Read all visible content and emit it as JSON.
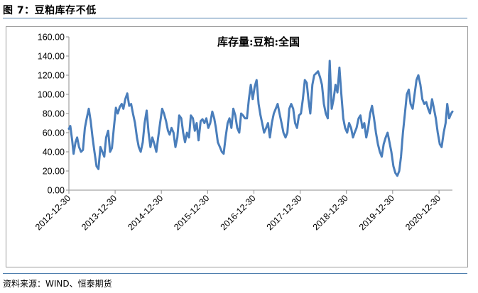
{
  "figure": {
    "title": "图 7：豆粕库存不低",
    "source": "资料来源：WIND、恒泰期货"
  },
  "chart_data": {
    "type": "line",
    "title": "库存量:豆粕:全国",
    "xlabel": "",
    "ylabel": "",
    "ylim": [
      0,
      160
    ],
    "y_ticks": [
      "0.00",
      "20.00",
      "40.00",
      "60.00",
      "80.00",
      "100.00",
      "120.00",
      "140.00",
      "160.00"
    ],
    "x_ticks": [
      "2012-12-30",
      "2013-12-30",
      "2014-12-30",
      "2015-12-30",
      "2016-12-30",
      "2017-12-30",
      "2018-12-30",
      "2019-12-30",
      "2020-12-30"
    ],
    "x_range": [
      "2012-12-30",
      "2021-04-15"
    ],
    "grid": false,
    "legend": "none",
    "line_color": "#4a7ebb",
    "series": [
      {
        "x": [
          "2012-12-30",
          "2013-01-10",
          "2013-01-25",
          "2013-02-05",
          "2013-02-20",
          "2013-03-05",
          "2013-03-20",
          "2013-04-05",
          "2013-04-20",
          "2013-05-05",
          "2013-05-20",
          "2013-06-05",
          "2013-06-20",
          "2013-07-05",
          "2013-07-20",
          "2013-08-05",
          "2013-08-20",
          "2013-09-05",
          "2013-09-20",
          "2013-10-05",
          "2013-10-20",
          "2013-11-05",
          "2013-11-20",
          "2013-12-05",
          "2013-12-20",
          "2014-01-05",
          "2014-01-20",
          "2014-02-05",
          "2014-02-20",
          "2014-03-05",
          "2014-03-20",
          "2014-04-05",
          "2014-04-20",
          "2014-05-05",
          "2014-05-20",
          "2014-06-05",
          "2014-06-20",
          "2014-07-05",
          "2014-07-20",
          "2014-08-05",
          "2014-08-20",
          "2014-09-05",
          "2014-09-20",
          "2014-10-05",
          "2014-10-20",
          "2014-11-05",
          "2014-11-20",
          "2014-12-05",
          "2014-12-20",
          "2015-01-05",
          "2015-01-20",
          "2015-02-05",
          "2015-02-20",
          "2015-03-05",
          "2015-03-20",
          "2015-04-05",
          "2015-04-20",
          "2015-05-05",
          "2015-05-20",
          "2015-06-05",
          "2015-06-20",
          "2015-07-05",
          "2015-07-20",
          "2015-08-05",
          "2015-08-20",
          "2015-09-05",
          "2015-09-20",
          "2015-10-05",
          "2015-10-20",
          "2015-11-05",
          "2015-11-20",
          "2015-12-05",
          "2015-12-20",
          "2016-01-05",
          "2016-01-20",
          "2016-02-05",
          "2016-02-20",
          "2016-03-05",
          "2016-03-20",
          "2016-04-05",
          "2016-04-20",
          "2016-05-05",
          "2016-05-20",
          "2016-06-05",
          "2016-06-20",
          "2016-07-05",
          "2016-07-20",
          "2016-08-05",
          "2016-08-20",
          "2016-09-05",
          "2016-09-20",
          "2016-10-05",
          "2016-10-20",
          "2016-11-05",
          "2016-11-20",
          "2016-12-05",
          "2016-12-20",
          "2017-01-05",
          "2017-01-20",
          "2017-02-05",
          "2017-02-20",
          "2017-03-05",
          "2017-03-20",
          "2017-04-05",
          "2017-04-20",
          "2017-05-05",
          "2017-05-20",
          "2017-06-05",
          "2017-06-20",
          "2017-07-05",
          "2017-07-20",
          "2017-08-05",
          "2017-08-20",
          "2017-09-05",
          "2017-09-20",
          "2017-10-05",
          "2017-10-20",
          "2017-11-05",
          "2017-11-20",
          "2017-12-05",
          "2017-12-20",
          "2018-01-05",
          "2018-01-20",
          "2018-02-05",
          "2018-02-20",
          "2018-03-05",
          "2018-03-20",
          "2018-04-05",
          "2018-04-20",
          "2018-05-05",
          "2018-05-20",
          "2018-06-05",
          "2018-06-20",
          "2018-07-05",
          "2018-07-20",
          "2018-08-05",
          "2018-08-20",
          "2018-09-05",
          "2018-09-20",
          "2018-10-05",
          "2018-10-20",
          "2018-11-05",
          "2018-11-20",
          "2018-12-05",
          "2018-12-20",
          "2019-01-05",
          "2019-01-20",
          "2019-02-05",
          "2019-02-20",
          "2019-03-05",
          "2019-03-20",
          "2019-04-05",
          "2019-04-20",
          "2019-05-05",
          "2019-05-20",
          "2019-06-05",
          "2019-06-20",
          "2019-07-05",
          "2019-07-20",
          "2019-08-05",
          "2019-08-20",
          "2019-09-05",
          "2019-09-20",
          "2019-10-05",
          "2019-10-20",
          "2019-11-05",
          "2019-11-20",
          "2019-12-05",
          "2019-12-20",
          "2020-01-05",
          "2020-01-20",
          "2020-02-05",
          "2020-02-20",
          "2020-03-05",
          "2020-03-20",
          "2020-04-05",
          "2020-04-20",
          "2020-05-05",
          "2020-05-20",
          "2020-06-05",
          "2020-06-20",
          "2020-07-05",
          "2020-07-20",
          "2020-08-05",
          "2020-08-20",
          "2020-09-05",
          "2020-09-20",
          "2020-10-05",
          "2020-10-20",
          "2020-11-05",
          "2020-11-20",
          "2020-12-05",
          "2020-12-20",
          "2021-01-05",
          "2021-01-20",
          "2021-02-05",
          "2021-02-20",
          "2021-03-05",
          "2021-03-20",
          "2021-04-05",
          "2021-04-15"
        ],
        "values": [
          64,
          67,
          52,
          38,
          50,
          55,
          45,
          40,
          42,
          65,
          75,
          85,
          72,
          55,
          40,
          25,
          22,
          45,
          40,
          35,
          55,
          62,
          40,
          44,
          65,
          86,
          80,
          87,
          90,
          85,
          95,
          101,
          88,
          90,
          80,
          70,
          55,
          45,
          40,
          50,
          70,
          83,
          60,
          45,
          55,
          48,
          40,
          55,
          70,
          85,
          80,
          72,
          62,
          58,
          65,
          60,
          45,
          55,
          78,
          75,
          60,
          50,
          60,
          55,
          78,
          75,
          62,
          70,
          52,
          72,
          74,
          70,
          75,
          65,
          70,
          82,
          75,
          65,
          50,
          45,
          40,
          38,
          55,
          70,
          75,
          65,
          85,
          78,
          65,
          60,
          80,
          78,
          75,
          75,
          95,
          110,
          95,
          108,
          115,
          90,
          78,
          70,
          60,
          65,
          70,
          55,
          70,
          80,
          85,
          90,
          80,
          70,
          60,
          55,
          60,
          85,
          90,
          85,
          70,
          65,
          78,
          80,
          95,
          115,
          112,
          95,
          80,
          110,
          120,
          122,
          124,
          118,
          110,
          90,
          80,
          75,
          135,
          85,
          95,
          110,
          102,
          128,
          100,
          75,
          65,
          60,
          70,
          65,
          55,
          60,
          65,
          75,
          78,
          65,
          70,
          55,
          65,
          80,
          88,
          75,
          60,
          48,
          40,
          35,
          48,
          55,
          60,
          50,
          40,
          25,
          18,
          15,
          20,
          35,
          60,
          80,
          100,
          105,
          90,
          85,
          100,
          115,
          120,
          110,
          95,
          90,
          92,
          85,
          80,
          95,
          85,
          75,
          60,
          48,
          45,
          60,
          70,
          90,
          75,
          80,
          82
        ]
      }
    ]
  }
}
